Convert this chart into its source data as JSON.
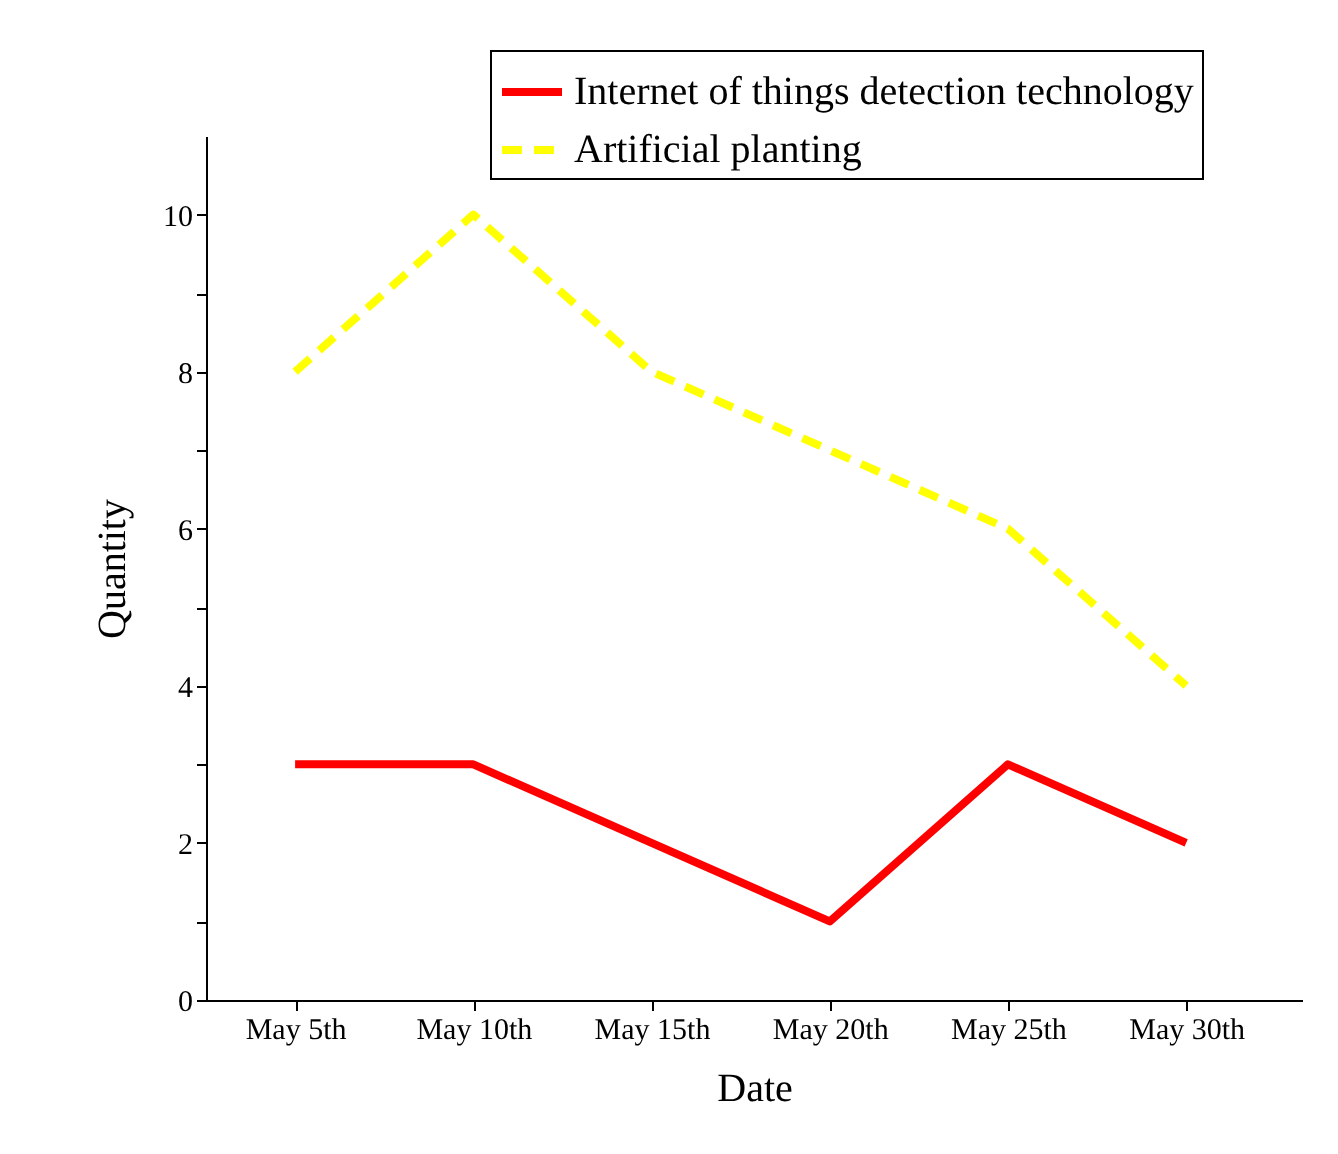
{
  "chart_data": {
    "type": "line",
    "xlabel": "Date",
    "ylabel": "Quantity",
    "categories": [
      "May 5th",
      "May 10th",
      "May 15th",
      "May 20th",
      "May 25th",
      "May 30th"
    ],
    "series": [
      {
        "name": "Internet of things detection technology",
        "color": "#ff0000",
        "line_style": "solid",
        "values": [
          3,
          3,
          2,
          1,
          3,
          2
        ]
      },
      {
        "name": "Artificial planting",
        "color": "#ffff00",
        "line_style": "dashed",
        "values": [
          8,
          10,
          8,
          7,
          6,
          4
        ]
      }
    ],
    "ylim": [
      0,
      11
    ],
    "yticks": [
      0,
      {
        "value": 1,
        "label": null
      },
      2,
      {
        "value": 3,
        "label": null
      },
      4,
      {
        "value": 5,
        "label": null
      },
      6,
      {
        "value": 7,
        "label": null
      },
      8,
      {
        "value": 9,
        "label": null
      },
      10
    ],
    "legend": "top right"
  }
}
